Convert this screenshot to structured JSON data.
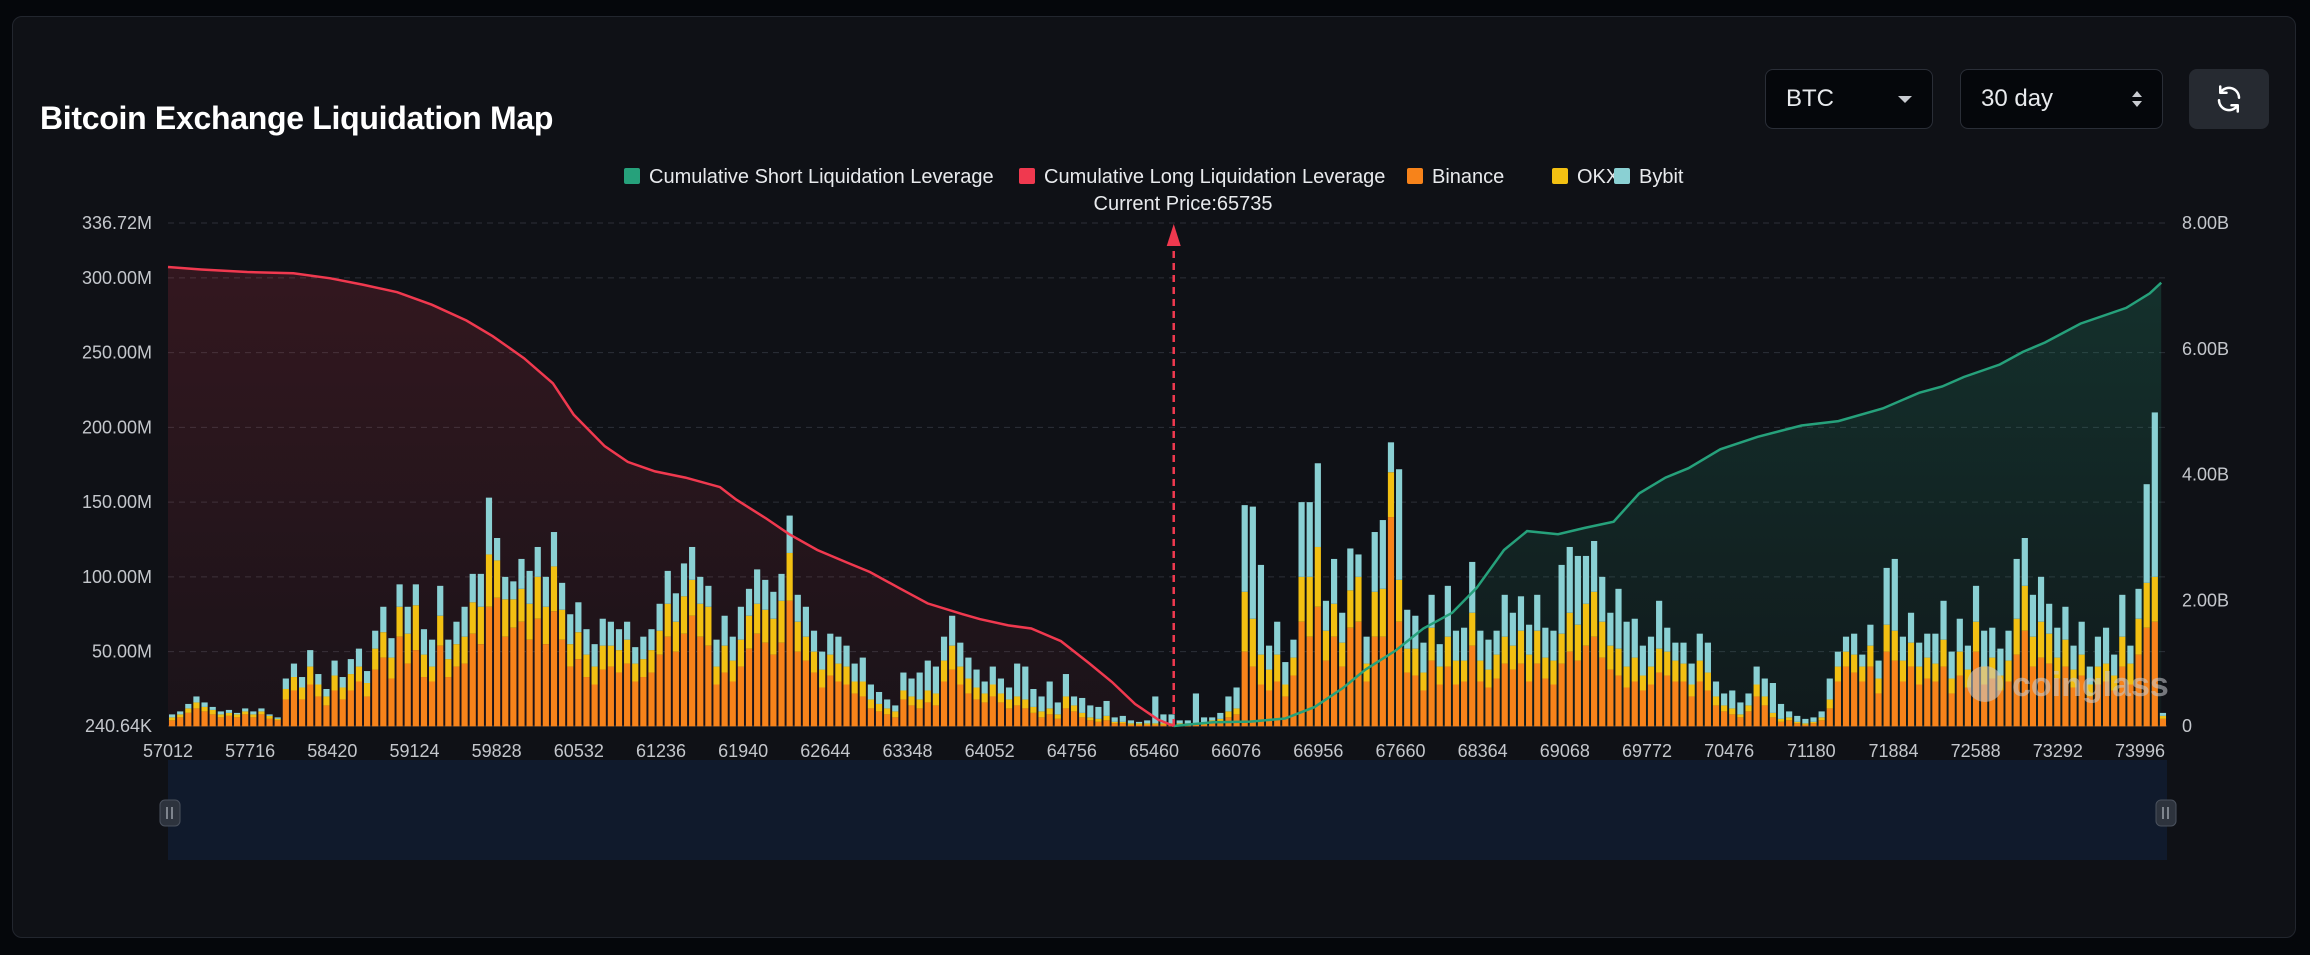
{
  "header": {
    "title": "Bitcoin Exchange Liquidation Map",
    "coin_select": {
      "value": "BTC"
    },
    "period_select": {
      "value": "30 day"
    },
    "refresh_icon": "refresh-icon"
  },
  "watermark": "coinglass",
  "chart_data": {
    "type": "bar",
    "current_price_label": "Current Price:65735",
    "current_price": 65735,
    "legend": [
      {
        "name": "Cumulative Short Liquidation Leverage",
        "color": "#26a17b"
      },
      {
        "name": "Cumulative Long Liquidation Leverage",
        "color": "#f0394f"
      },
      {
        "name": "Binance",
        "color": "#f7831a"
      },
      {
        "name": "OKX",
        "color": "#f2c012"
      },
      {
        "name": "Bybit",
        "color": "#8ad0d3"
      }
    ],
    "x_range": [
      57012,
      74350
    ],
    "x_ticks": [
      "57012",
      "57716",
      "58420",
      "59124",
      "59828",
      "60532",
      "61236",
      "61940",
      "62644",
      "63348",
      "64052",
      "64756",
      "65460",
      "66076",
      "66956",
      "67660",
      "68364",
      "69068",
      "69772",
      "70476",
      "71180",
      "71884",
      "72588",
      "73292",
      "73996"
    ],
    "y_left": {
      "range": [
        240640,
        336720000
      ],
      "tick_labels": [
        "240.64K",
        "50.00M",
        "100.00M",
        "150.00M",
        "200.00M",
        "250.00M",
        "300.00M",
        "336.72M"
      ],
      "tick_values": [
        240640,
        50000000,
        100000000,
        150000000,
        200000000,
        250000000,
        300000000,
        336720000
      ]
    },
    "y_right": {
      "range": [
        0,
        8000000000
      ],
      "tick_labels": [
        "0",
        "2.00B",
        "4.00B",
        "6.00B",
        "8.00B"
      ],
      "tick_values": [
        0,
        2000000000,
        4000000000,
        6000000000,
        8000000000
      ]
    },
    "grid": "horizontal-dashed",
    "legend_position": "top-center",
    "bar_values_millions": [
      [
        4,
        2,
        2
      ],
      [
        6,
        2,
        2
      ],
      [
        9,
        3,
        3
      ],
      [
        12,
        4,
        4
      ],
      [
        10,
        3,
        3
      ],
      [
        8,
        3,
        2
      ],
      [
        6,
        2,
        2
      ],
      [
        7,
        2,
        2
      ],
      [
        6,
        2,
        1
      ],
      [
        8,
        2,
        2
      ],
      [
        6,
        2,
        2
      ],
      [
        8,
        2,
        2
      ],
      [
        5,
        2,
        1
      ],
      [
        4,
        1,
        1
      ],
      [
        18,
        7,
        7
      ],
      [
        24,
        9,
        9
      ],
      [
        18,
        8,
        7
      ],
      [
        28,
        12,
        11
      ],
      [
        20,
        8,
        7
      ],
      [
        14,
        6,
        5
      ],
      [
        24,
        10,
        10
      ],
      [
        18,
        8,
        7
      ],
      [
        24,
        11,
        10
      ],
      [
        30,
        10,
        12
      ],
      [
        20,
        9,
        8
      ],
      [
        38,
        14,
        12
      ],
      [
        46,
        17,
        17
      ],
      [
        32,
        14,
        13
      ],
      [
        60,
        20,
        15
      ],
      [
        42,
        20,
        18
      ],
      [
        51,
        30,
        14
      ],
      [
        33,
        15,
        17
      ],
      [
        30,
        10,
        18
      ],
      [
        54,
        20,
        20
      ],
      [
        33,
        12,
        13
      ],
      [
        40,
        15,
        15
      ],
      [
        42,
        18,
        20
      ],
      [
        62,
        21,
        19
      ],
      [
        55,
        25,
        22
      ],
      [
        80,
        35,
        38
      ],
      [
        86,
        25,
        15
      ],
      [
        60,
        25,
        15
      ],
      [
        66,
        19,
        12
      ],
      [
        70,
        22,
        20
      ],
      [
        58,
        24,
        22
      ],
      [
        72,
        28,
        20
      ],
      [
        55,
        25,
        20
      ],
      [
        77,
        30,
        23
      ],
      [
        58,
        20,
        18
      ],
      [
        40,
        15,
        20
      ],
      [
        45,
        18,
        20
      ],
      [
        33,
        15,
        17
      ],
      [
        28,
        12,
        15
      ],
      [
        38,
        16,
        18
      ],
      [
        40,
        14,
        16
      ],
      [
        36,
        15,
        14
      ],
      [
        42,
        16,
        12
      ],
      [
        30,
        12,
        11
      ],
      [
        33,
        12,
        15
      ],
      [
        36,
        15,
        14
      ],
      [
        48,
        16,
        18
      ],
      [
        60,
        22,
        22
      ],
      [
        50,
        20,
        19
      ],
      [
        62,
        25,
        22
      ],
      [
        74,
        24,
        22
      ],
      [
        60,
        22,
        18
      ],
      [
        54,
        26,
        14
      ],
      [
        28,
        12,
        18
      ],
      [
        36,
        18,
        20
      ],
      [
        30,
        14,
        16
      ],
      [
        40,
        18,
        22
      ],
      [
        52,
        22,
        18
      ],
      [
        62,
        20,
        23
      ],
      [
        56,
        22,
        20
      ],
      [
        48,
        24,
        18
      ],
      [
        56,
        28,
        18
      ],
      [
        84,
        32,
        25
      ],
      [
        50,
        20,
        18
      ],
      [
        44,
        16,
        20
      ],
      [
        36,
        14,
        14
      ],
      [
        26,
        12,
        12
      ],
      [
        34,
        14,
        14
      ],
      [
        30,
        12,
        18
      ],
      [
        28,
        12,
        14
      ],
      [
        22,
        8,
        12
      ],
      [
        20,
        10,
        16
      ],
      [
        12,
        6,
        10
      ],
      [
        10,
        5,
        8
      ],
      [
        8,
        4,
        6
      ],
      [
        6,
        4,
        4
      ],
      [
        18,
        6,
        12
      ],
      [
        14,
        6,
        12
      ],
      [
        12,
        6,
        18
      ],
      [
        16,
        8,
        20
      ],
      [
        14,
        8,
        18
      ],
      [
        30,
        14,
        16
      ],
      [
        38,
        16,
        20
      ],
      [
        28,
        12,
        16
      ],
      [
        22,
        10,
        14
      ],
      [
        18,
        8,
        12
      ],
      [
        16,
        6,
        8
      ],
      [
        20,
        8,
        12
      ],
      [
        16,
        6,
        10
      ],
      [
        12,
        6,
        8
      ],
      [
        14,
        6,
        22
      ],
      [
        12,
        6,
        22
      ],
      [
        9,
        4,
        12
      ],
      [
        6,
        4,
        10
      ],
      [
        8,
        4,
        18
      ],
      [
        5,
        3,
        8
      ],
      [
        12,
        8,
        15
      ],
      [
        10,
        4,
        6
      ],
      [
        6,
        3,
        10
      ],
      [
        4,
        2,
        8
      ],
      [
        3,
        2,
        8
      ],
      [
        4,
        3,
        10
      ],
      [
        2,
        1,
        3
      ],
      [
        2,
        1,
        4
      ],
      [
        1,
        1,
        2
      ],
      [
        1,
        1,
        1
      ],
      [
        1,
        1,
        2
      ],
      [
        1,
        1,
        18
      ],
      [
        1,
        1,
        6
      ],
      [
        1,
        1,
        6
      ],
      [
        1,
        1,
        2
      ],
      [
        1,
        1,
        2
      ],
      [
        1,
        1,
        20
      ],
      [
        1,
        1,
        4
      ],
      [
        2,
        2,
        2
      ],
      [
        3,
        2,
        4
      ],
      [
        6,
        4,
        10
      ],
      [
        8,
        4,
        14
      ],
      [
        50,
        40,
        58
      ],
      [
        40,
        32,
        75
      ],
      [
        28,
        20,
        60
      ],
      [
        24,
        14,
        16
      ],
      [
        30,
        18,
        22
      ],
      [
        20,
        8,
        15
      ],
      [
        34,
        12,
        12
      ],
      [
        70,
        30,
        50
      ],
      [
        60,
        40,
        50
      ],
      [
        80,
        40,
        56
      ],
      [
        44,
        20,
        20
      ],
      [
        60,
        22,
        30
      ],
      [
        40,
        16,
        20
      ],
      [
        66,
        25,
        28
      ],
      [
        70,
        30,
        15
      ],
      [
        30,
        12,
        18
      ],
      [
        60,
        30,
        40
      ],
      [
        60,
        32,
        46
      ],
      [
        140,
        30,
        20
      ],
      [
        70,
        28,
        74
      ],
      [
        36,
        16,
        26
      ],
      [
        34,
        18,
        22
      ],
      [
        24,
        12,
        20
      ],
      [
        44,
        22,
        22
      ],
      [
        28,
        12,
        15
      ],
      [
        40,
        20,
        34
      ],
      [
        28,
        16,
        20
      ],
      [
        30,
        14,
        22
      ],
      [
        54,
        22,
        34
      ],
      [
        30,
        14,
        20
      ],
      [
        26,
        12,
        20
      ],
      [
        32,
        16,
        16
      ],
      [
        42,
        18,
        28
      ],
      [
        38,
        16,
        22
      ],
      [
        42,
        22,
        23
      ],
      [
        30,
        18,
        20
      ],
      [
        42,
        22,
        24
      ],
      [
        32,
        14,
        20
      ],
      [
        28,
        16,
        20
      ],
      [
        42,
        20,
        46
      ],
      [
        50,
        26,
        44
      ],
      [
        44,
        24,
        46
      ],
      [
        54,
        28,
        32
      ],
      [
        60,
        30,
        34
      ],
      [
        46,
        24,
        30
      ],
      [
        38,
        16,
        22
      ],
      [
        34,
        18,
        40
      ],
      [
        26,
        14,
        30
      ],
      [
        30,
        16,
        26
      ],
      [
        24,
        10,
        20
      ],
      [
        28,
        12,
        20
      ],
      [
        36,
        16,
        32
      ],
      [
        34,
        16,
        16
      ],
      [
        30,
        14,
        12
      ],
      [
        30,
        12,
        14
      ],
      [
        20,
        8,
        14
      ],
      [
        30,
        14,
        18
      ],
      [
        24,
        12,
        20
      ],
      [
        14,
        6,
        10
      ],
      [
        10,
        4,
        8
      ],
      [
        8,
        4,
        12
      ],
      [
        6,
        2,
        8
      ],
      [
        10,
        4,
        8
      ],
      [
        20,
        8,
        12
      ],
      [
        14,
        6,
        12
      ],
      [
        6,
        3,
        20
      ],
      [
        3,
        2,
        10
      ],
      [
        4,
        2,
        4
      ],
      [
        2,
        1,
        4
      ],
      [
        1,
        1,
        3
      ],
      [
        2,
        1,
        3
      ],
      [
        4,
        2,
        4
      ],
      [
        12,
        6,
        14
      ],
      [
        30,
        10,
        10
      ],
      [
        40,
        10,
        10
      ],
      [
        36,
        12,
        14
      ],
      [
        30,
        10,
        8
      ],
      [
        40,
        14,
        14
      ],
      [
        22,
        10,
        12
      ],
      [
        50,
        18,
        38
      ],
      [
        44,
        20,
        48
      ],
      [
        30,
        14,
        16
      ],
      [
        40,
        16,
        20
      ],
      [
        28,
        12,
        16
      ],
      [
        32,
        14,
        16
      ],
      [
        30,
        12,
        20
      ],
      [
        40,
        18,
        26
      ],
      [
        22,
        10,
        18
      ],
      [
        34,
        16,
        22
      ],
      [
        26,
        12,
        16
      ],
      [
        50,
        20,
        24
      ],
      [
        28,
        12,
        24
      ],
      [
        32,
        14,
        20
      ],
      [
        24,
        10,
        18
      ],
      [
        30,
        14,
        20
      ],
      [
        48,
        24,
        40
      ],
      [
        64,
        30,
        32
      ],
      [
        40,
        20,
        28
      ],
      [
        46,
        24,
        30
      ],
      [
        42,
        20,
        20
      ],
      [
        32,
        14,
        20
      ],
      [
        40,
        18,
        22
      ],
      [
        26,
        12,
        16
      ],
      [
        34,
        14,
        22
      ],
      [
        20,
        8,
        12
      ],
      [
        28,
        12,
        20
      ],
      [
        30,
        12,
        24
      ],
      [
        24,
        10,
        14
      ],
      [
        40,
        20,
        28
      ],
      [
        28,
        14,
        12
      ],
      [
        48,
        24,
        20
      ],
      [
        66,
        30,
        66
      ],
      [
        70,
        30,
        110
      ],
      [
        5,
        2,
        2
      ]
    ],
    "cumulative_long_billions": [
      [
        57012,
        7.3
      ],
      [
        57300,
        7.26
      ],
      [
        57700,
        7.22
      ],
      [
        58100,
        7.2
      ],
      [
        58420,
        7.12
      ],
      [
        58700,
        7.02
      ],
      [
        59000,
        6.9
      ],
      [
        59300,
        6.7
      ],
      [
        59600,
        6.45
      ],
      [
        59828,
        6.2
      ],
      [
        60100,
        5.85
      ],
      [
        60350,
        5.45
      ],
      [
        60532,
        4.95
      ],
      [
        60800,
        4.45
      ],
      [
        61000,
        4.2
      ],
      [
        61236,
        4.05
      ],
      [
        61500,
        3.95
      ],
      [
        61800,
        3.8
      ],
      [
        61940,
        3.6
      ],
      [
        62200,
        3.3
      ],
      [
        62400,
        3.05
      ],
      [
        62644,
        2.8
      ],
      [
        62900,
        2.6
      ],
      [
        63100,
        2.45
      ],
      [
        63348,
        2.2
      ],
      [
        63600,
        1.95
      ],
      [
        63900,
        1.78
      ],
      [
        64052,
        1.7
      ],
      [
        64300,
        1.6
      ],
      [
        64500,
        1.55
      ],
      [
        64756,
        1.35
      ],
      [
        65000,
        1.0
      ],
      [
        65200,
        0.7
      ],
      [
        65400,
        0.35
      ],
      [
        65600,
        0.1
      ],
      [
        65735,
        0.0
      ]
    ],
    "cumulative_short_billions": [
      [
        65735,
        0.0
      ],
      [
        65900,
        0.03
      ],
      [
        66076,
        0.06
      ],
      [
        66400,
        0.07
      ],
      [
        66700,
        0.12
      ],
      [
        66956,
        0.3
      ],
      [
        67200,
        0.6
      ],
      [
        67400,
        0.9
      ],
      [
        67660,
        1.2
      ],
      [
        67900,
        1.55
      ],
      [
        68150,
        1.8
      ],
      [
        68364,
        2.2
      ],
      [
        68600,
        2.8
      ],
      [
        68800,
        3.1
      ],
      [
        69068,
        3.05
      ],
      [
        69300,
        3.15
      ],
      [
        69550,
        3.25
      ],
      [
        69772,
        3.7
      ],
      [
        70000,
        3.95
      ],
      [
        70200,
        4.1
      ],
      [
        70476,
        4.4
      ],
      [
        70800,
        4.6
      ],
      [
        71180,
        4.78
      ],
      [
        71500,
        4.85
      ],
      [
        71884,
        5.05
      ],
      [
        72200,
        5.3
      ],
      [
        72400,
        5.4
      ],
      [
        72588,
        5.55
      ],
      [
        72900,
        5.75
      ],
      [
        73100,
        5.95
      ],
      [
        73292,
        6.1
      ],
      [
        73600,
        6.4
      ],
      [
        73996,
        6.65
      ],
      [
        74200,
        6.88
      ],
      [
        74300,
        7.05
      ]
    ]
  }
}
